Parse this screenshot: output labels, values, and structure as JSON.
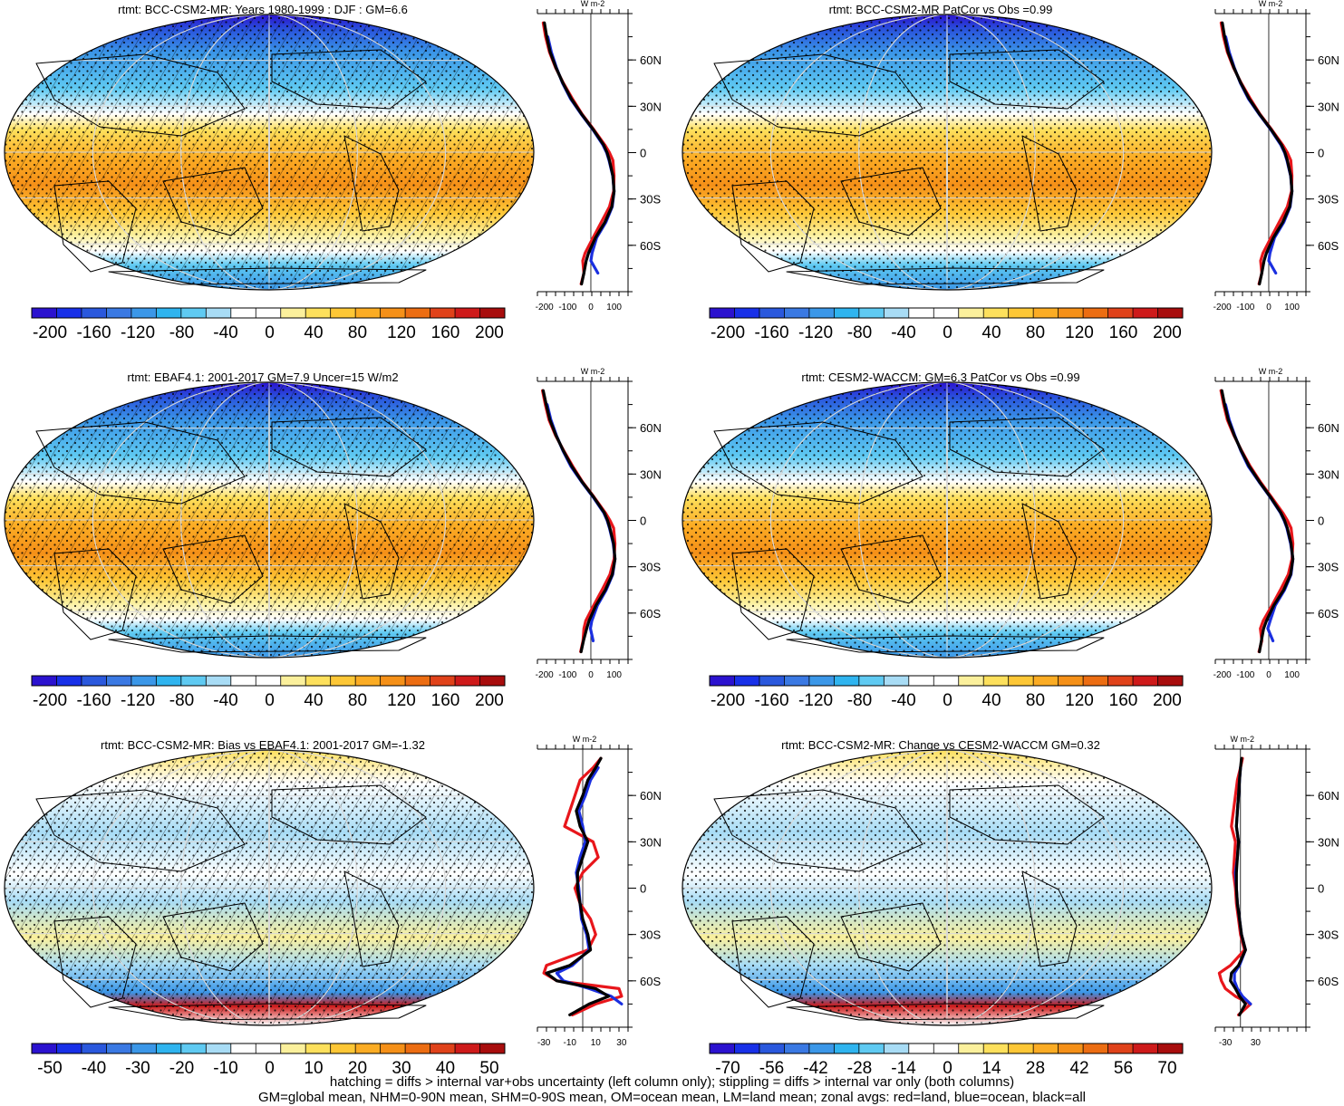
{
  "footer": {
    "line1": "hatching = diffs > internal var+obs uncertainty (left column only); stippling = diffs > internal var only (both columns)",
    "line2": "GM=global mean, NHM=0-90N mean, SHM=0-90S mean, OM=ocean mean, LM=land mean; zonal avgs: red=land, blue=ocean, black=all"
  },
  "colors": {
    "land": "#e8161b",
    "ocean": "#1a2fe0",
    "all": "#000000",
    "palette": [
      "#2b12cf",
      "#1830e8",
      "#2a58dd",
      "#3a79e3",
      "#3b97e8",
      "#2fb4ef",
      "#5fcaf2",
      "#a8dcf5",
      "#ffffff",
      "#ffffff",
      "#fbf09c",
      "#fde05c",
      "#fdc736",
      "#fbac24",
      "#f59018",
      "#ec6d12",
      "#e0421a",
      "#ce1a1a",
      "#a80d0d"
    ]
  },
  "chart_data": [
    {
      "type": "heatmap",
      "title": "rtmt: BCC-CSM2-MR: Years 1980-1999 : DJF : GM=6.6",
      "colorbar_ticks": [
        "-200",
        "-160",
        "-120",
        "-80",
        "-40",
        "0",
        "40",
        "80",
        "120",
        "160",
        "200"
      ],
      "zonal_profile": {
        "unit": "W m-2",
        "lat_ticks": [
          "60N",
          "30N",
          "0",
          "30S",
          "60S"
        ],
        "x_ticks": [
          "-200",
          "-100",
          "0",
          "100"
        ],
        "xlim": [
          -230,
          160
        ],
        "ylim": [
          -90,
          90
        ],
        "lat": [
          84,
          75,
          65,
          55,
          45,
          35,
          25,
          15,
          5,
          0,
          -5,
          -15,
          -25,
          -35,
          -45,
          -55,
          -65,
          -70,
          -78,
          -85
        ],
        "all": [
          -200,
          -190,
          -175,
          -150,
          -120,
          -85,
          -40,
          10,
          55,
          70,
          80,
          95,
          100,
          90,
          60,
          20,
          -10,
          -20,
          -30,
          -40
        ],
        "land": [
          -205,
          -195,
          -178,
          -152,
          -118,
          -80,
          -38,
          12,
          60,
          80,
          95,
          100,
          98,
          80,
          45,
          10,
          -25,
          -35,
          -30,
          -42
        ],
        "ocean": [
          null,
          -185,
          -170,
          -148,
          -122,
          -88,
          -42,
          8,
          52,
          68,
          78,
          94,
          100,
          92,
          65,
          25,
          5,
          0,
          30,
          null
        ]
      }
    },
    {
      "type": "heatmap",
      "title": "rtmt: BCC-CSM2-MR PatCor vs Obs =0.99",
      "colorbar_ticks": [
        "-200",
        "-160",
        "-120",
        "-80",
        "-40",
        "0",
        "40",
        "80",
        "120",
        "160",
        "200"
      ],
      "zonal_profile": {
        "unit": "W m-2",
        "lat_ticks": [
          "60N",
          "30N",
          "0",
          "30S",
          "60S"
        ],
        "x_ticks": [
          "-200",
          "-100",
          "0",
          "100"
        ],
        "xlim": [
          -230,
          160
        ],
        "ylim": [
          -90,
          90
        ],
        "lat": [
          84,
          75,
          65,
          55,
          45,
          35,
          25,
          15,
          5,
          0,
          -5,
          -15,
          -25,
          -35,
          -45,
          -55,
          -65,
          -70,
          -78,
          -85
        ],
        "all": [
          -200,
          -190,
          -175,
          -150,
          -120,
          -85,
          -40,
          10,
          55,
          70,
          80,
          95,
          100,
          90,
          60,
          20,
          -10,
          -20,
          -30,
          -40
        ],
        "land": [
          -205,
          -195,
          -178,
          -152,
          -118,
          -80,
          -38,
          12,
          60,
          80,
          95,
          100,
          98,
          80,
          45,
          10,
          -25,
          -35,
          -30,
          -42
        ],
        "ocean": [
          null,
          -185,
          -170,
          -148,
          -122,
          -88,
          -42,
          8,
          52,
          68,
          78,
          94,
          100,
          92,
          65,
          25,
          5,
          0,
          30,
          null
        ]
      }
    },
    {
      "type": "heatmap",
      "title": "rtmt: EBAF4.1: 2001-2017 GM=7.9 Uncer=15 W/m2",
      "colorbar_ticks": [
        "-200",
        "-160",
        "-120",
        "-80",
        "-40",
        "0",
        "40",
        "80",
        "120",
        "160",
        "200"
      ],
      "zonal_profile": {
        "unit": "W m-2",
        "lat_ticks": [
          "60N",
          "30N",
          "0",
          "30S",
          "60S"
        ],
        "x_ticks": [
          "-200",
          "-100",
          "0",
          "100"
        ],
        "xlim": [
          -230,
          160
        ],
        "ylim": [
          -90,
          90
        ],
        "lat": [
          84,
          75,
          65,
          55,
          45,
          35,
          25,
          15,
          5,
          0,
          -5,
          -15,
          -25,
          -35,
          -45,
          -55,
          -65,
          -70,
          -78,
          -85
        ],
        "all": [
          -205,
          -192,
          -176,
          -150,
          -118,
          -82,
          -38,
          12,
          58,
          72,
          82,
          98,
          104,
          92,
          62,
          22,
          -8,
          -18,
          -32,
          -42
        ],
        "land": [
          -208,
          -196,
          -180,
          -152,
          -116,
          -78,
          -36,
          14,
          62,
          82,
          98,
          104,
          100,
          82,
          48,
          12,
          -22,
          -30,
          -34,
          -44
        ],
        "ocean": [
          null,
          -188,
          -172,
          -148,
          -120,
          -86,
          -40,
          10,
          55,
          70,
          80,
          96,
          104,
          94,
          66,
          28,
          4,
          -2,
          10,
          null
        ]
      }
    },
    {
      "type": "heatmap",
      "title": "rtmt: CESM2-WACCM: GM=6.3 PatCor vs Obs =0.99",
      "colorbar_ticks": [
        "-200",
        "-160",
        "-120",
        "-80",
        "-40",
        "0",
        "40",
        "80",
        "120",
        "160",
        "200"
      ],
      "zonal_profile": {
        "unit": "W m-2",
        "lat_ticks": [
          "60N",
          "30N",
          "0",
          "30S",
          "60S"
        ],
        "x_ticks": [
          "-200",
          "-100",
          "0",
          "100"
        ],
        "xlim": [
          -230,
          160
        ],
        "ylim": [
          -90,
          90
        ],
        "lat": [
          84,
          75,
          65,
          55,
          45,
          35,
          25,
          15,
          5,
          0,
          -5,
          -15,
          -25,
          -35,
          -45,
          -55,
          -65,
          -70,
          -78,
          -85
        ],
        "all": [
          -202,
          -190,
          -174,
          -148,
          -118,
          -84,
          -40,
          8,
          52,
          68,
          80,
          96,
          104,
          94,
          64,
          22,
          -10,
          -22,
          -32,
          -40
        ],
        "land": [
          -206,
          -194,
          -178,
          -150,
          -116,
          -80,
          -36,
          12,
          60,
          80,
          96,
          104,
          100,
          84,
          50,
          14,
          -24,
          -36,
          -30,
          -42
        ],
        "ocean": [
          null,
          -186,
          -170,
          -146,
          -120,
          -88,
          -42,
          6,
          50,
          66,
          78,
          94,
          104,
          96,
          68,
          28,
          6,
          -4,
          18,
          null
        ]
      }
    },
    {
      "type": "heatmap",
      "title": "rtmt: BCC-CSM2-MR: Bias vs EBAF4.1: 2001-2017 GM=-1.32",
      "colorbar_ticks": [
        "-50",
        "-40",
        "-30",
        "-20",
        "-10",
        "0",
        "10",
        "20",
        "30",
        "40",
        "50"
      ],
      "zonal_profile": {
        "unit": "W m-2",
        "lat_ticks": [
          "60N",
          "30N",
          "0",
          "30S",
          "60S"
        ],
        "x_ticks": [
          "-30",
          "-10",
          "10",
          "30"
        ],
        "xlim": [
          -35,
          35
        ],
        "ylim": [
          -90,
          90
        ],
        "lat": [
          84,
          78,
          70,
          60,
          50,
          40,
          30,
          20,
          10,
          0,
          -10,
          -20,
          -30,
          -40,
          -50,
          -55,
          -60,
          -65,
          -70,
          -75,
          -82
        ],
        "all": [
          14,
          10,
          4,
          0,
          -5,
          -2,
          4,
          0,
          -4,
          -4,
          -2,
          0,
          4,
          6,
          -10,
          -28,
          -20,
          10,
          20,
          5,
          -10
        ],
        "land": [
          14,
          8,
          -2,
          -6,
          -10,
          -14,
          8,
          12,
          0,
          -6,
          -2,
          6,
          10,
          4,
          -28,
          -30,
          -20,
          28,
          30,
          10,
          -8
        ],
        "ocean": [
          null,
          12,
          6,
          2,
          -3,
          0,
          2,
          -2,
          -5,
          -3,
          -2,
          -1,
          3,
          5,
          -8,
          -20,
          -15,
          5,
          22,
          30,
          null
        ]
      }
    },
    {
      "type": "heatmap",
      "title": "rtmt: BCC-CSM2-MR: Change vs CESM2-WACCM GM=0.32",
      "colorbar_ticks": [
        "-70",
        "-56",
        "-42",
        "-28",
        "-14",
        "0",
        "14",
        "28",
        "42",
        "56",
        "70"
      ],
      "zonal_profile": {
        "unit": "W m-2",
        "lat_ticks": [
          "60N",
          "30N",
          "0",
          "30S",
          "60S"
        ],
        "x_ticks": [
          "-30",
          "30"
        ],
        "xlim": [
          -50,
          130
        ],
        "ylim": [
          -90,
          90
        ],
        "lat": [
          84,
          78,
          70,
          60,
          50,
          40,
          30,
          20,
          10,
          0,
          -10,
          -20,
          -30,
          -40,
          -50,
          -55,
          -60,
          -65,
          -70,
          -75,
          -82
        ],
        "all": [
          2,
          0,
          -2,
          -4,
          -6,
          -8,
          -4,
          -6,
          -8,
          -8,
          -6,
          -2,
          2,
          10,
          -4,
          -18,
          -20,
          -10,
          -2,
          10,
          -2
        ],
        "land": [
          4,
          0,
          -6,
          -10,
          -14,
          -18,
          -10,
          -12,
          -14,
          -10,
          -8,
          -4,
          0,
          8,
          -20,
          -42,
          -38,
          -30,
          -10,
          20,
          -4
        ],
        "ocean": [
          null,
          0,
          -2,
          -4,
          -6,
          -8,
          -4,
          -6,
          -10,
          -8,
          -6,
          -2,
          2,
          10,
          -2,
          -12,
          -12,
          -6,
          4,
          20,
          null
        ]
      }
    }
  ]
}
